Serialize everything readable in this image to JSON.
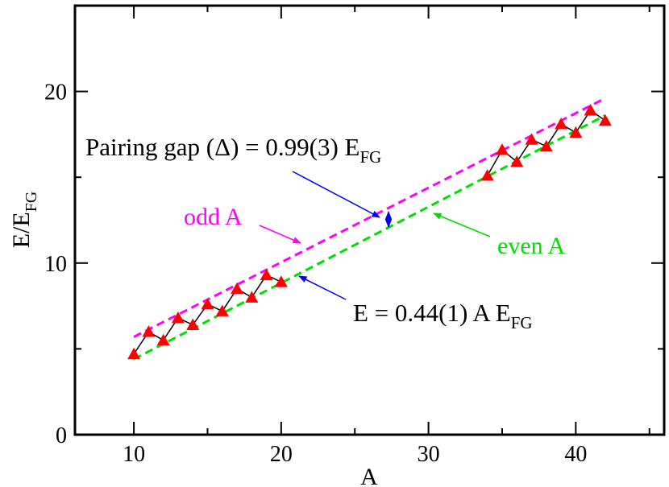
{
  "chart_data": {
    "type": "line",
    "title": "",
    "xlabel": "A",
    "ylabel_main": "E/E",
    "ylabel_sub": "FG",
    "xlim": [
      6,
      46
    ],
    "ylim": [
      0,
      25
    ],
    "xticks": [
      10,
      20,
      30,
      40
    ],
    "yticks": [
      0,
      10,
      20
    ],
    "grid": false,
    "series": [
      {
        "name": "data",
        "color": "#ff0000",
        "line_color": "#000000",
        "marker": "triangle",
        "points": [
          [
            10,
            4.7
          ],
          [
            11,
            6.0
          ],
          [
            12,
            5.5
          ],
          [
            13,
            6.8
          ],
          [
            14,
            6.4
          ],
          [
            15,
            7.6
          ],
          [
            16,
            7.2
          ],
          [
            17,
            8.5
          ],
          [
            18,
            8.0
          ],
          [
            19,
            9.3
          ],
          [
            20,
            8.9
          ],
          [
            34,
            15.1
          ],
          [
            35,
            16.6
          ],
          [
            36,
            15.9
          ],
          [
            37,
            17.2
          ],
          [
            38,
            16.8
          ],
          [
            39,
            18.1
          ],
          [
            40,
            17.6
          ],
          [
            41,
            18.9
          ],
          [
            42,
            18.3
          ]
        ]
      },
      {
        "name": "odd A",
        "color": "#ff00ff",
        "dashed": true,
        "points": [
          [
            10,
            5.7
          ],
          [
            42,
            19.6
          ]
        ]
      },
      {
        "name": "even A",
        "color": "#00dd00",
        "dashed": true,
        "points": [
          [
            10,
            4.4
          ],
          [
            42,
            18.6
          ]
        ]
      }
    ],
    "annotations": {
      "pairing_prefix": "Pairing gap (",
      "pairing_delta": "Δ",
      "pairing_mid": ") = 0.99(3) E",
      "pairing_sub": "FG",
      "odd_label": "odd A",
      "even_label": "even A",
      "fit_main": "E = 0.44(1) A E",
      "fit_sub": "FG",
      "pairing_arrow_color": "#0000ff",
      "odd_arrow_color": "#ff00ff",
      "even_arrow_color": "#00dd00",
      "fit_arrow_color": "#0000ff"
    }
  }
}
